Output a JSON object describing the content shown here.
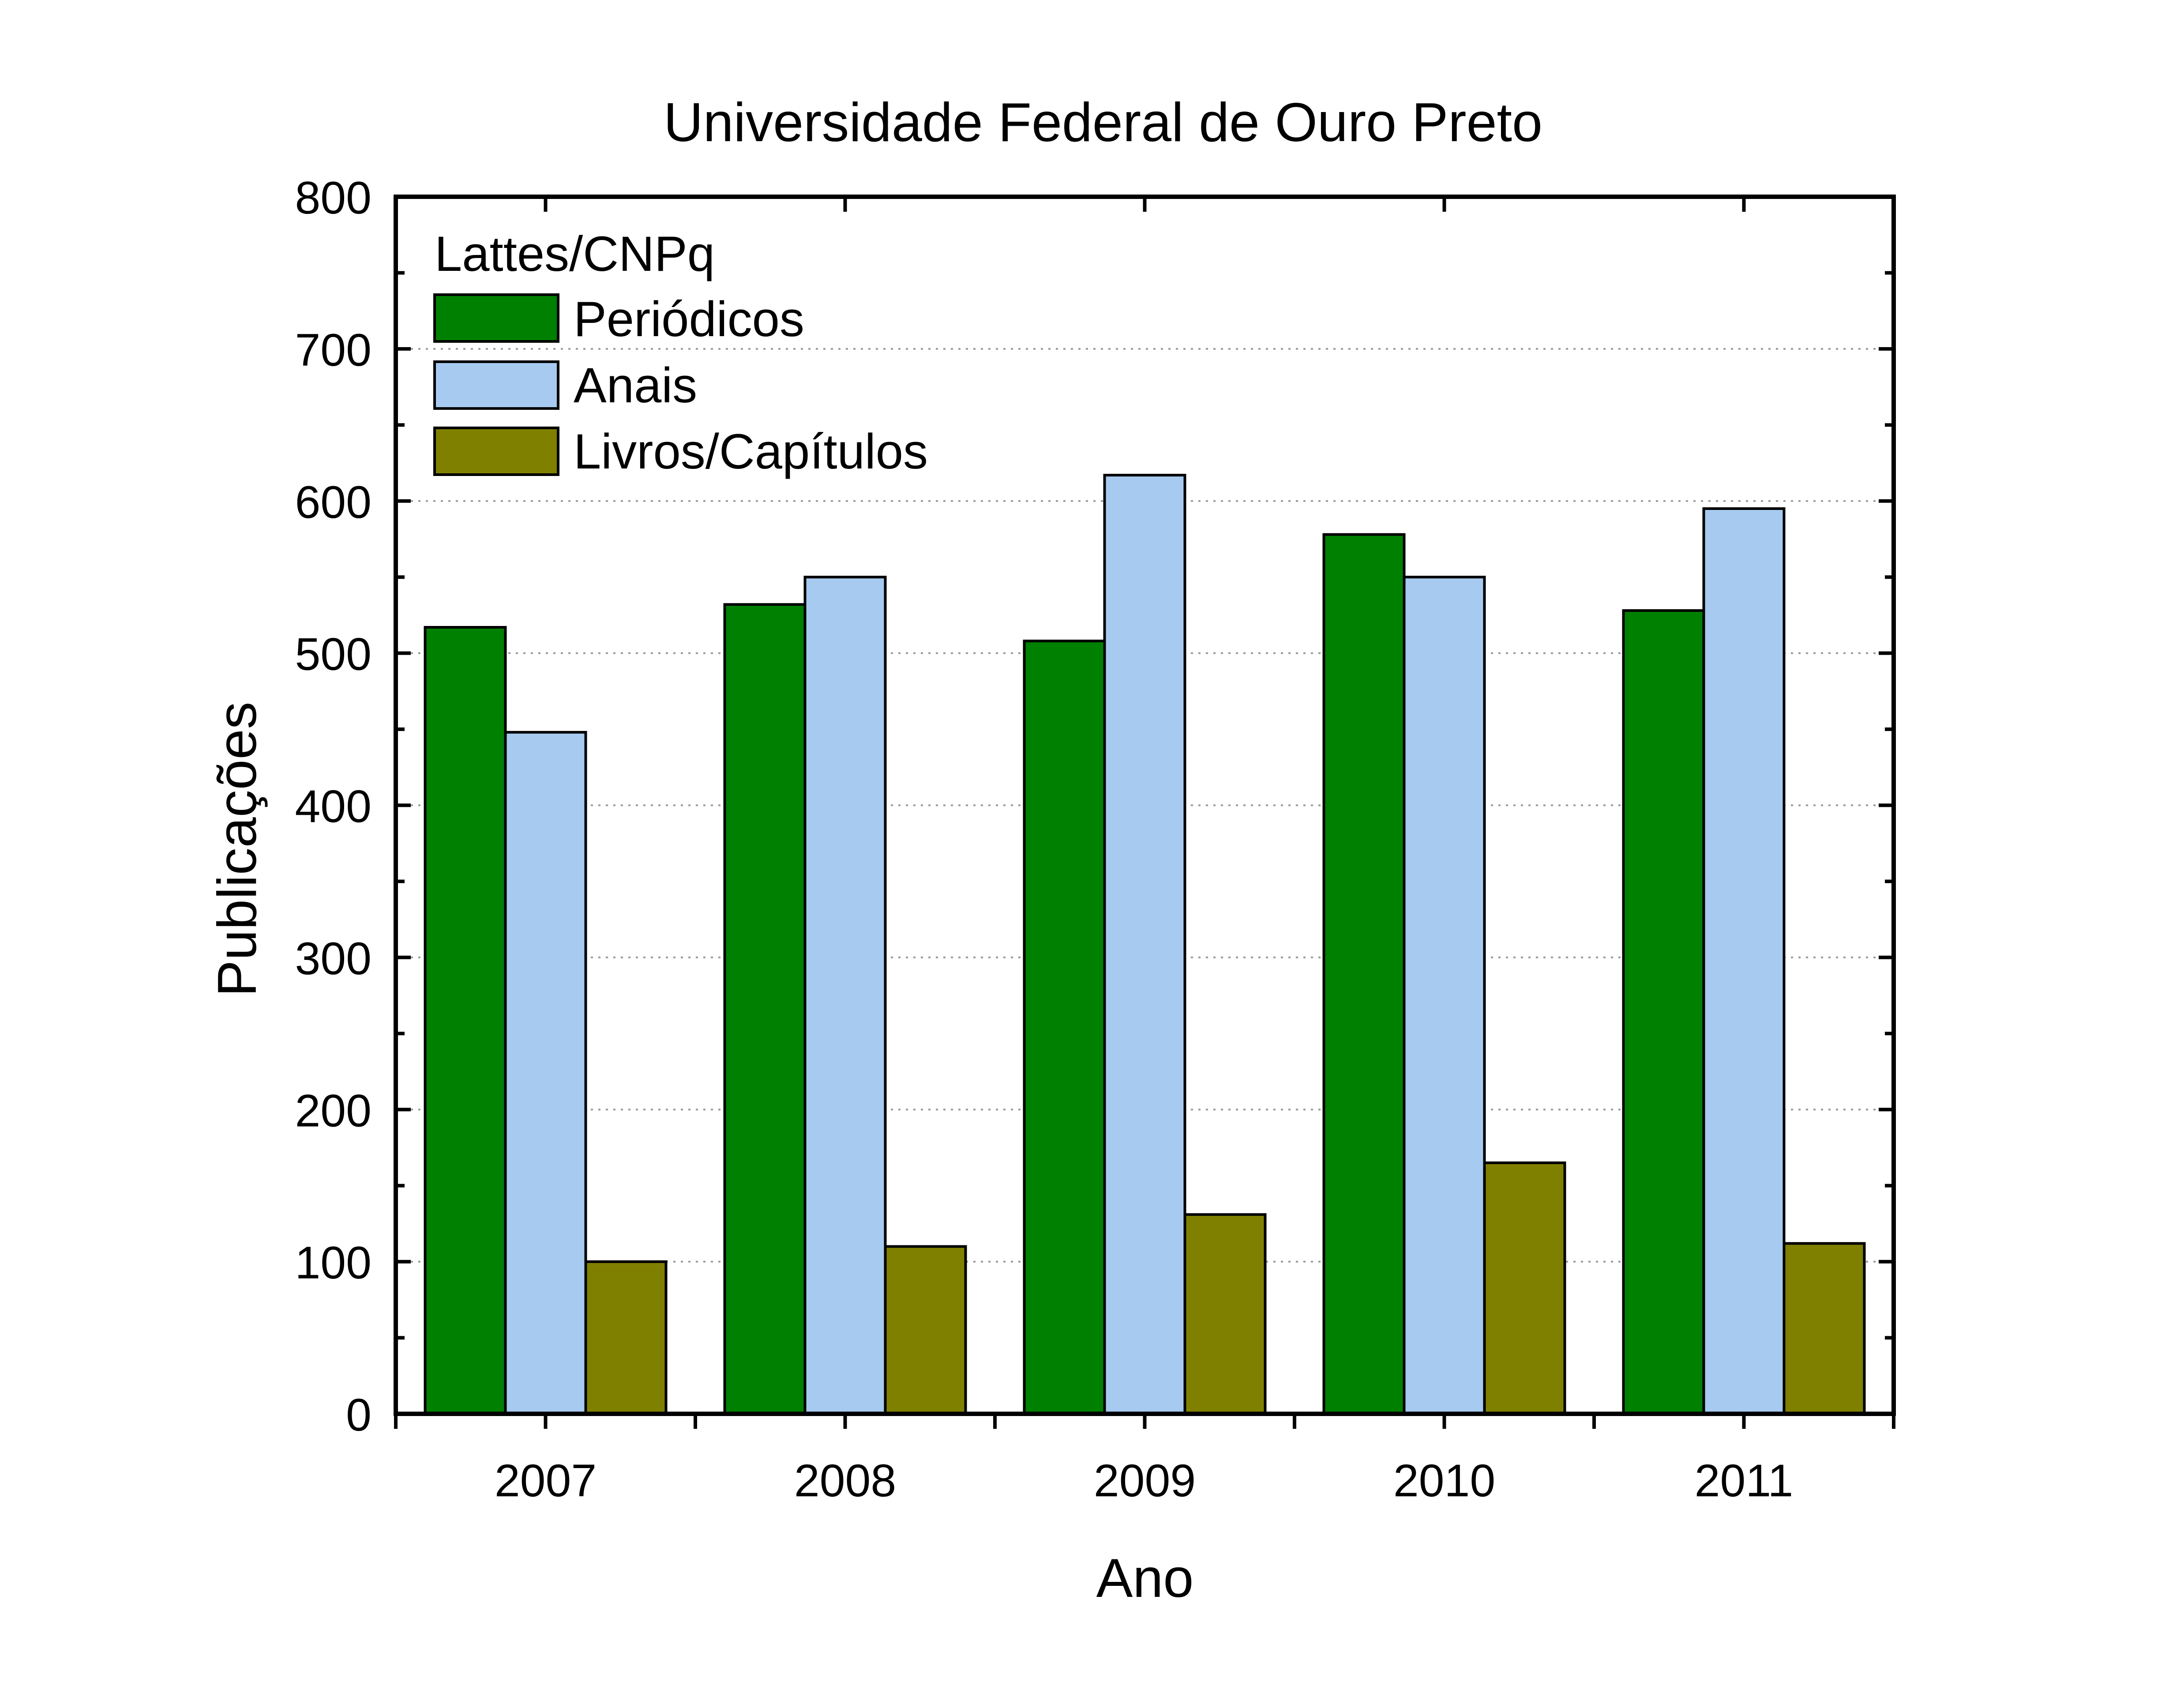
{
  "chart_data": {
    "type": "bar",
    "title": "Universidade Federal de Ouro Preto",
    "xlabel": "Ano",
    "ylabel": "Publicações",
    "categories": [
      "2007",
      "2008",
      "2009",
      "2010",
      "2011"
    ],
    "ylim": [
      0,
      800
    ],
    "yticks": [
      0,
      100,
      200,
      300,
      400,
      500,
      600,
      700,
      800
    ],
    "grid": true,
    "legend": {
      "title": "Lattes/CNPq",
      "position": "top-left"
    },
    "series": [
      {
        "name": "Periódicos",
        "color": "#008000",
        "values": [
          517,
          532,
          508,
          578,
          528
        ]
      },
      {
        "name": "Anais",
        "color": "#a6caf0",
        "values": [
          448,
          550,
          617,
          550,
          595
        ]
      },
      {
        "name": "Livros/Capítulos",
        "color": "#808000",
        "values": [
          100,
          110,
          131,
          165,
          112
        ]
      }
    ]
  }
}
